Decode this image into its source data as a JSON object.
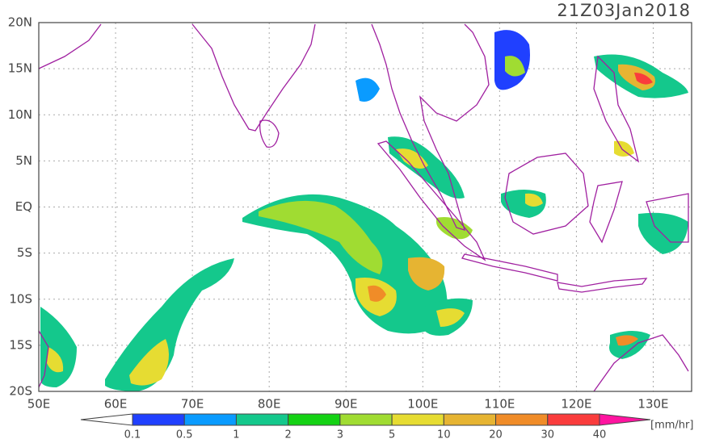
{
  "title": "21Z03Jan2018",
  "lat_labels": [
    "20N",
    "15N",
    "10N",
    "5N",
    "EQ",
    "5S",
    "10S",
    "15S",
    "20S"
  ],
  "lon_labels": [
    "50E",
    "60E",
    "70E",
    "80E",
    "90E",
    "100E",
    "110E",
    "120E",
    "130E"
  ],
  "colorbar": {
    "labels": [
      0.1,
      0.5,
      1,
      2,
      3,
      5,
      10,
      20,
      30,
      40
    ],
    "colors": [
      "#2040ff",
      "#0a9bff",
      "#14c88c",
      "#14d214",
      "#a0dc32",
      "#e6dc32",
      "#e6b432",
      "#f08c28",
      "#fa3c3c"
    ],
    "under_color": "#ffffff",
    "over_color": "#ff14a0",
    "unit": "[mm/hr]"
  }
}
